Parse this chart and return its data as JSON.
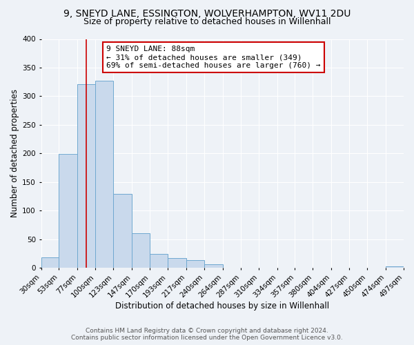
{
  "title": "9, SNEYD LANE, ESSINGTON, WOLVERHAMPTON, WV11 2DU",
  "subtitle": "Size of property relative to detached houses in Willenhall",
  "xlabel": "Distribution of detached houses by size in Willenhall",
  "ylabel": "Number of detached properties",
  "bar_color": "#c9d9ec",
  "bar_edge_color": "#6fa8d0",
  "background_color": "#eef2f7",
  "annotation_title": "9 SNEYD LANE: 88sqm",
  "annotation_line1": "← 31% of detached houses are smaller (349)",
  "annotation_line2": "69% of semi-detached houses are larger (760) →",
  "property_line_x": 88,
  "bin_edges": [
    30,
    53,
    77,
    100,
    123,
    147,
    170,
    193,
    217,
    240,
    264,
    287,
    310,
    334,
    357,
    380,
    404,
    427,
    450,
    474,
    497
  ],
  "bin_counts": [
    18,
    199,
    321,
    327,
    129,
    61,
    25,
    17,
    14,
    6,
    1,
    0,
    0,
    0,
    0,
    0,
    0,
    0,
    0,
    3
  ],
  "tick_labels": [
    "30sqm",
    "53sqm",
    "77sqm",
    "100sqm",
    "123sqm",
    "147sqm",
    "170sqm",
    "193sqm",
    "217sqm",
    "240sqm",
    "264sqm",
    "287sqm",
    "310sqm",
    "334sqm",
    "357sqm",
    "380sqm",
    "404sqm",
    "427sqm",
    "450sqm",
    "474sqm",
    "497sqm"
  ],
  "ylim": [
    0,
    400
  ],
  "yticks": [
    0,
    50,
    100,
    150,
    200,
    250,
    300,
    350,
    400
  ],
  "footer_line1": "Contains HM Land Registry data © Crown copyright and database right 2024.",
  "footer_line2": "Contains public sector information licensed under the Open Government Licence v3.0.",
  "annotation_box_color": "#ffffff",
  "annotation_box_edge_color": "#cc0000",
  "property_line_color": "#cc0000",
  "title_fontsize": 10,
  "subtitle_fontsize": 9,
  "axis_label_fontsize": 8.5,
  "tick_fontsize": 7.5,
  "annotation_fontsize": 8,
  "footer_fontsize": 6.5
}
